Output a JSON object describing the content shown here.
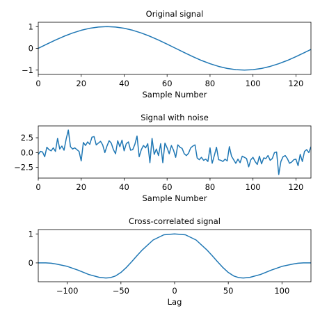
{
  "figure": {
    "background": "#ffffff",
    "line_color": "#1f77b4"
  },
  "chart_data": [
    {
      "type": "line",
      "title": "Original signal",
      "xlabel": "Sample Number",
      "ylabel": "",
      "xlim": [
        0,
        127
      ],
      "ylim": [
        -1.2,
        1.2
      ],
      "xticks": [
        0,
        20,
        40,
        60,
        80,
        100,
        120
      ],
      "yticks": [
        -1,
        0,
        1
      ],
      "xticklabels": [
        "0",
        "20",
        "40",
        "60",
        "80",
        "100",
        "120"
      ],
      "yticklabels": [
        "−1",
        "0",
        "1"
      ],
      "grid": false,
      "series": [
        {
          "x": [
            0,
            4,
            8,
            12,
            16,
            20,
            24,
            28,
            32,
            36,
            40,
            44,
            48,
            52,
            56,
            60,
            64,
            68,
            72,
            76,
            80,
            84,
            88,
            92,
            96,
            100,
            104,
            108,
            112,
            116,
            120,
            124,
            127
          ],
          "y": [
            0,
            0.195,
            0.383,
            0.556,
            0.707,
            0.831,
            0.924,
            0.981,
            1,
            0.981,
            0.924,
            0.831,
            0.707,
            0.556,
            0.383,
            0.195,
            0,
            -0.195,
            -0.383,
            -0.556,
            -0.707,
            -0.831,
            -0.924,
            -0.981,
            -1,
            -0.981,
            -0.924,
            -0.831,
            -0.707,
            -0.556,
            -0.383,
            -0.195,
            -0.049
          ]
        }
      ]
    },
    {
      "type": "line",
      "title": "Signal with noise",
      "xlabel": "Sample Number",
      "ylabel": "",
      "xlim": [
        0,
        127
      ],
      "ylim": [
        -4.3,
        4.5
      ],
      "xticks": [
        0,
        20,
        40,
        60,
        80,
        100,
        120
      ],
      "yticks": [
        -2.5,
        0,
        2.5
      ],
      "xticklabels": [
        "0",
        "20",
        "40",
        "60",
        "80",
        "100",
        "120"
      ],
      "yticklabels": [
        "−2.5",
        "0.0",
        "2.5"
      ],
      "grid": false,
      "series": [
        {
          "x": [
            0,
            1,
            2,
            3,
            4,
            5,
            6,
            7,
            8,
            9,
            10,
            11,
            12,
            13,
            14,
            15,
            16,
            17,
            18,
            19,
            20,
            21,
            22,
            23,
            24,
            25,
            26,
            27,
            28,
            29,
            30,
            31,
            32,
            33,
            34,
            35,
            36,
            37,
            38,
            39,
            40,
            41,
            42,
            43,
            44,
            45,
            46,
            47,
            48,
            49,
            50,
            51,
            52,
            53,
            54,
            55,
            56,
            57,
            58,
            59,
            60,
            61,
            62,
            63,
            64,
            65,
            66,
            67,
            68,
            69,
            70,
            71,
            72,
            73,
            74,
            75,
            76,
            77,
            78,
            79,
            80,
            81,
            82,
            83,
            84,
            85,
            86,
            87,
            88,
            89,
            90,
            91,
            92,
            93,
            94,
            95,
            96,
            97,
            98,
            99,
            100,
            101,
            102,
            103,
            104,
            105,
            106,
            107,
            108,
            109,
            110,
            111,
            112,
            113,
            114,
            115,
            116,
            117,
            118,
            119,
            120,
            121,
            122,
            123,
            124,
            125,
            126,
            127
          ],
          "y": [
            -0.3,
            0.2,
            0.1,
            -0.7,
            0.9,
            0.5,
            0.3,
            0.8,
            0.2,
            2.4,
            0.6,
            1.1,
            0.4,
            2.3,
            3.8,
            1.0,
            0.6,
            0.8,
            0.5,
            0.2,
            -1.4,
            1.7,
            1.2,
            1.8,
            1.4,
            2.6,
            2.7,
            1.3,
            1.6,
            1.9,
            1.3,
            0.0,
            1.1,
            2.0,
            1.6,
            0.5,
            -0.2,
            2.0,
            1.0,
            2.1,
            0.3,
            1.5,
            1.8,
            0.4,
            0.5,
            1.4,
            2.8,
            -0.7,
            0.5,
            1.2,
            0.8,
            1.5,
            -1.7,
            2.4,
            -0.3,
            0.6,
            -0.5,
            1.5,
            -1.7,
            1.6,
            0.8,
            -0.2,
            1.2,
            0.4,
            -0.8,
            1.3,
            0.9,
            0.7,
            -0.2,
            -0.5,
            -0.1,
            0.8,
            1.1,
            1.3,
            -0.9,
            -1.2,
            -0.8,
            -1.3,
            -1.1,
            -1.5,
            0.8,
            -1.8,
            -0.5,
            0.9,
            -1.2,
            -1.3,
            -1.5,
            -1.1,
            -1.4,
            1.0,
            -0.6,
            -1.2,
            -1.8,
            -1.1,
            -1.7,
            -0.6,
            -0.8,
            -1.0,
            -2.4,
            -1.2,
            -0.8,
            -1.5,
            -2.0,
            -0.6,
            -1.9,
            -0.9,
            -1.0,
            -0.5,
            -1.3,
            -1.0,
            0.0,
            0.1,
            -3.7,
            -1.5,
            -0.7,
            -0.5,
            -1.0,
            -1.8,
            -1.6,
            -1.2,
            -1.1,
            -2.2,
            -0.3,
            -1.5,
            0.2,
            0.5,
            0.0,
            1.0
          ]
        }
      ]
    },
    {
      "type": "line",
      "title": "Cross-correlated signal",
      "xlabel": "Lag",
      "ylabel": "",
      "xlim": [
        -127,
        127
      ],
      "ylim": [
        -0.65,
        1.15
      ],
      "xticks": [
        -100,
        -50,
        0,
        50,
        100
      ],
      "yticks": [
        0,
        1
      ],
      "xticklabels": [
        "−100",
        "−50",
        "0",
        "50",
        "100"
      ],
      "yticklabels": [
        "0",
        "1"
      ],
      "grid": false,
      "series": [
        {
          "x": [
            -127,
            -120,
            -115,
            -110,
            -100,
            -90,
            -80,
            -70,
            -64,
            -60,
            -55,
            -50,
            -45,
            -40,
            -35,
            -30,
            -20,
            -10,
            0,
            10,
            20,
            30,
            35,
            40,
            45,
            50,
            55,
            60,
            64,
            70,
            80,
            90,
            100,
            110,
            115,
            120,
            127
          ],
          "y": [
            0,
            0,
            -0.01,
            -0.04,
            -0.12,
            -0.25,
            -0.4,
            -0.5,
            -0.52,
            -0.51,
            -0.45,
            -0.33,
            -0.16,
            0.04,
            0.25,
            0.45,
            0.79,
            0.97,
            1,
            0.97,
            0.79,
            0.45,
            0.25,
            0.04,
            -0.16,
            -0.33,
            -0.45,
            -0.51,
            -0.52,
            -0.5,
            -0.4,
            -0.25,
            -0.12,
            -0.04,
            -0.01,
            0,
            0
          ]
        }
      ]
    }
  ]
}
